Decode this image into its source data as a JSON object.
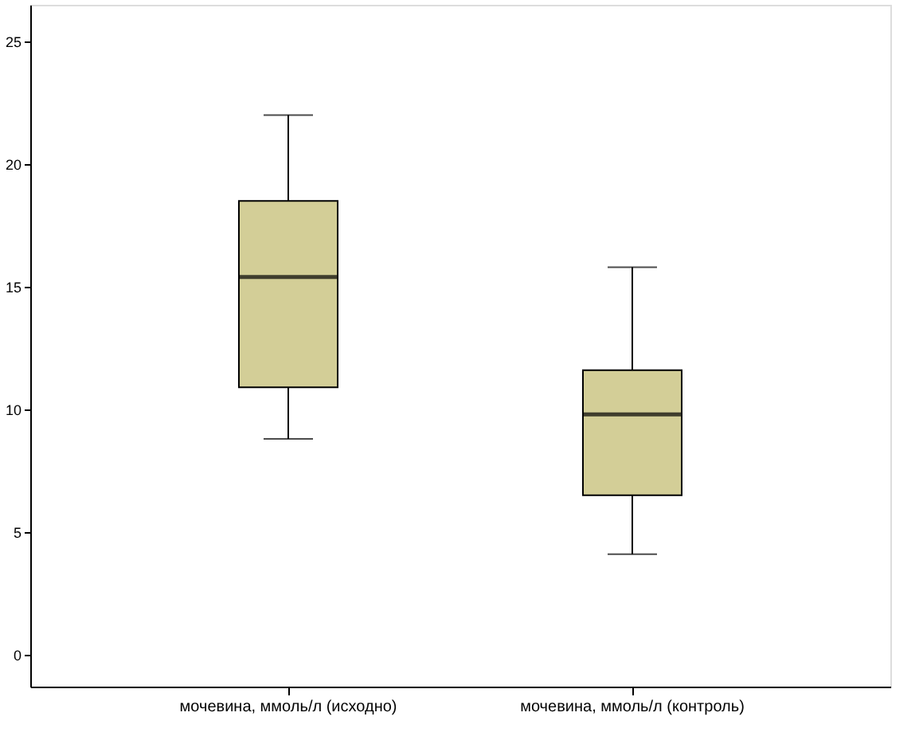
{
  "chart_data": {
    "type": "box",
    "categories": [
      "мочевина, ммоль/л (исходно)",
      "мочевина, ммоль/л (контроль)"
    ],
    "boxes": [
      {
        "low": 8.8,
        "q1": 10.9,
        "median": 15.4,
        "q3": 18.5,
        "high": 22
      },
      {
        "low": 4.1,
        "q1": 6.5,
        "median": 9.8,
        "q3": 11.6,
        "high": 15.8
      }
    ],
    "color": "#d3ce97",
    "ylim": [
      -1.3,
      26.5
    ],
    "yticks": [
      0,
      5,
      10,
      15,
      20,
      25
    ],
    "grid": false
  }
}
